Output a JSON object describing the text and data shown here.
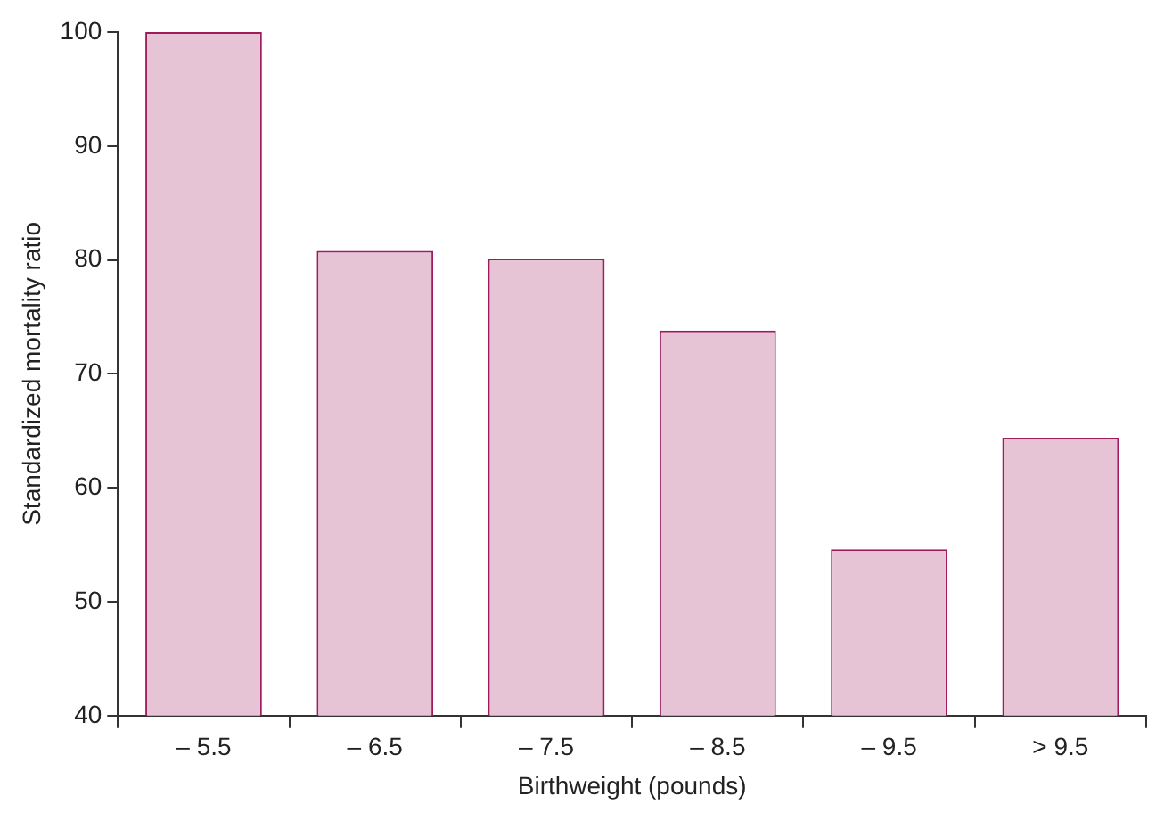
{
  "chart_data": {
    "type": "bar",
    "xlabel": "Birthweight (pounds)",
    "ylabel": "Standardized mortality ratio",
    "categories": [
      "– 5.5",
      "– 6.5",
      "– 7.5",
      "– 8.5",
      "– 9.5",
      "> 9.5"
    ],
    "series": [
      {
        "color": "#e6c4d5",
        "values": [
          100,
          80.8,
          80.1,
          73.8,
          54.6,
          64.4
        ]
      }
    ],
    "ylim": [
      40,
      100
    ],
    "yticks": [
      40,
      50,
      60,
      70,
      80,
      90,
      100
    ],
    "grid": false,
    "legend": false
  }
}
